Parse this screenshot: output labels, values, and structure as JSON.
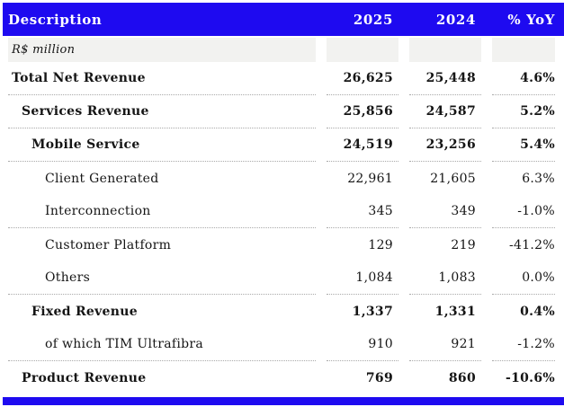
{
  "header": {
    "description": "Description",
    "col_2025": "2025",
    "col_2024": "2024",
    "col_yoy": "% YoY"
  },
  "unit_row": {
    "label": "R$ million"
  },
  "rows": [
    {
      "label": "Total Net Revenue",
      "v2025": "26,625",
      "v2024": "25,448",
      "yoy": "4.6%"
    },
    {
      "label": "Services Revenue",
      "v2025": "25,856",
      "v2024": "24,587",
      "yoy": "5.2%"
    },
    {
      "label": "Mobile Service",
      "v2025": "24,519",
      "v2024": "23,256",
      "yoy": "5.4%"
    },
    {
      "label": "Client Generated",
      "v2025": "22,961",
      "v2024": "21,605",
      "yoy": "6.3%"
    },
    {
      "label": "Interconnection",
      "v2025": "345",
      "v2024": "349",
      "yoy": "-1.0%"
    },
    {
      "label": "Customer Platform",
      "v2025": "129",
      "v2024": "219",
      "yoy": "-41.2%"
    },
    {
      "label": "Others",
      "v2025": "1,084",
      "v2024": "1,083",
      "yoy": "0.0%"
    },
    {
      "label": "Fixed Revenue",
      "v2025": "1,337",
      "v2024": "1,331",
      "yoy": "0.4%"
    },
    {
      "label": "of which TIM Ultrafibra",
      "v2025": "910",
      "v2024": "921",
      "yoy": "-1.2%"
    },
    {
      "label": "Product Revenue",
      "v2025": "769",
      "v2024": "860",
      "yoy": "-10.6%"
    }
  ],
  "colors": {
    "header_bg": "#1E0AF0",
    "header_text": "#FFFFFF",
    "footer_bar": "#1E0AF0",
    "unit_row_bg": "#F2F2F0",
    "divider": "#A9A9A9",
    "text": "#151515"
  }
}
